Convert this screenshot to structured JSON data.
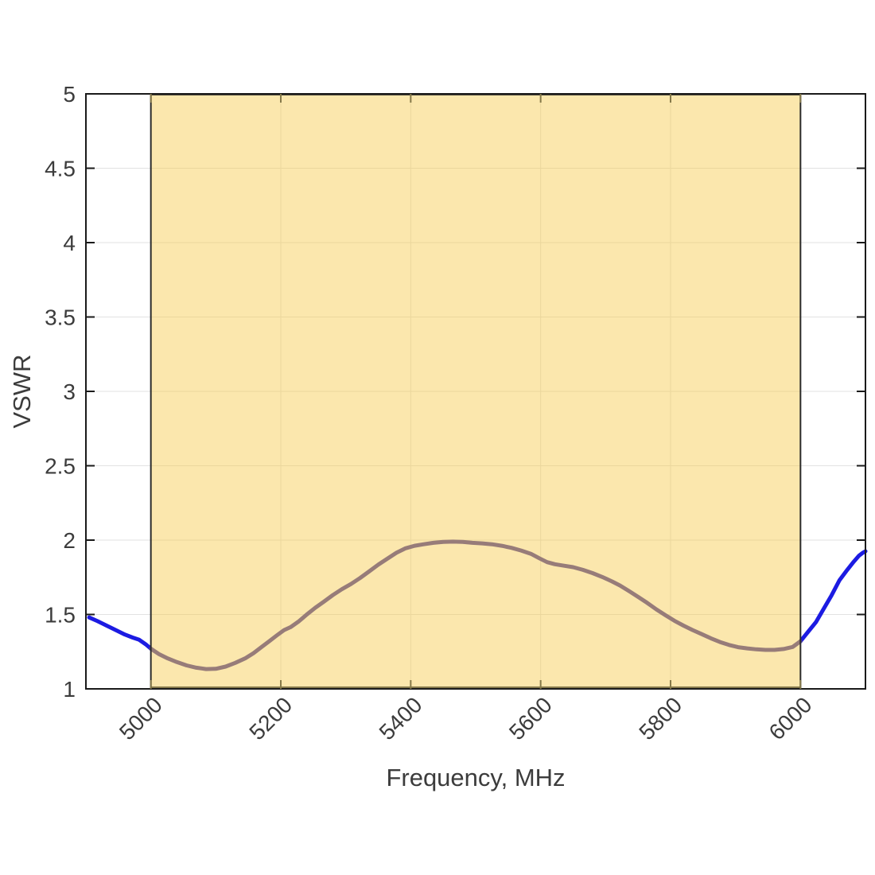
{
  "colors": {
    "background": "#FFFFFF",
    "grid": "#E2E2E2",
    "axis": "#1A1A1A",
    "tick_label": "#3C3C3C",
    "band_tick": "#85794A",
    "band_bottom_accent": "#867A4C",
    "band_top_accent": "#4A463A"
  },
  "chart_data": {
    "type": "line",
    "title": "",
    "xlabel": "Frequency, MHz",
    "ylabel": "VSWR",
    "xlim": [
      4900,
      6100
    ],
    "ylim": [
      1,
      5
    ],
    "grid": true,
    "legend": "none",
    "xticks": [
      5000,
      5200,
      5400,
      5600,
      5800,
      6000
    ],
    "xtick_labels": [
      "5000",
      "5200",
      "5400",
      "5600",
      "5800",
      "6000"
    ],
    "xtick_rotation": 45,
    "yticks": [
      1,
      1.5,
      2,
      2.5,
      3,
      3.5,
      4,
      4.5,
      5
    ],
    "ytick_labels": [
      "1",
      "1.5",
      "2",
      "2.5",
      "3",
      "3.5",
      "4",
      "4.5",
      "5"
    ],
    "band": {
      "x_start": 5000,
      "x_end": 6000,
      "fill": "#F6CA4A",
      "fill_opacity": 0.45,
      "edge_color": "#2B2B2B"
    },
    "series": [
      {
        "name": "VSWR",
        "color": "#1C1BE2",
        "color_in_band": "#4A3DA0",
        "line_width": 5,
        "points": [
          [
            4905,
            1.48
          ],
          [
            4918,
            1.455
          ],
          [
            4932,
            1.425
          ],
          [
            4946,
            1.395
          ],
          [
            4960,
            1.365
          ],
          [
            4972,
            1.345
          ],
          [
            4982,
            1.33
          ],
          [
            4992,
            1.3
          ],
          [
            5000,
            1.27
          ],
          [
            5012,
            1.235
          ],
          [
            5026,
            1.205
          ],
          [
            5040,
            1.18
          ],
          [
            5055,
            1.158
          ],
          [
            5070,
            1.142
          ],
          [
            5085,
            1.133
          ],
          [
            5100,
            1.135
          ],
          [
            5115,
            1.15
          ],
          [
            5130,
            1.175
          ],
          [
            5145,
            1.205
          ],
          [
            5158,
            1.24
          ],
          [
            5170,
            1.28
          ],
          [
            5182,
            1.32
          ],
          [
            5194,
            1.36
          ],
          [
            5205,
            1.395
          ],
          [
            5215,
            1.415
          ],
          [
            5228,
            1.455
          ],
          [
            5240,
            1.5
          ],
          [
            5253,
            1.545
          ],
          [
            5266,
            1.585
          ],
          [
            5280,
            1.63
          ],
          [
            5294,
            1.67
          ],
          [
            5308,
            1.705
          ],
          [
            5322,
            1.745
          ],
          [
            5336,
            1.79
          ],
          [
            5350,
            1.835
          ],
          [
            5364,
            1.875
          ],
          [
            5378,
            1.915
          ],
          [
            5392,
            1.945
          ],
          [
            5406,
            1.962
          ],
          [
            5420,
            1.972
          ],
          [
            5435,
            1.982
          ],
          [
            5450,
            1.988
          ],
          [
            5465,
            1.99
          ],
          [
            5480,
            1.988
          ],
          [
            5495,
            1.982
          ],
          [
            5510,
            1.978
          ],
          [
            5525,
            1.972
          ],
          [
            5540,
            1.962
          ],
          [
            5555,
            1.948
          ],
          [
            5570,
            1.93
          ],
          [
            5585,
            1.908
          ],
          [
            5598,
            1.878
          ],
          [
            5610,
            1.852
          ],
          [
            5622,
            1.838
          ],
          [
            5636,
            1.828
          ],
          [
            5650,
            1.818
          ],
          [
            5665,
            1.8
          ],
          [
            5680,
            1.778
          ],
          [
            5695,
            1.752
          ],
          [
            5710,
            1.722
          ],
          [
            5722,
            1.695
          ],
          [
            5736,
            1.658
          ],
          [
            5750,
            1.618
          ],
          [
            5764,
            1.578
          ],
          [
            5778,
            1.535
          ],
          [
            5792,
            1.495
          ],
          [
            5806,
            1.458
          ],
          [
            5820,
            1.425
          ],
          [
            5834,
            1.395
          ],
          [
            5848,
            1.368
          ],
          [
            5862,
            1.34
          ],
          [
            5876,
            1.315
          ],
          [
            5890,
            1.295
          ],
          [
            5904,
            1.28
          ],
          [
            5918,
            1.272
          ],
          [
            5932,
            1.266
          ],
          [
            5946,
            1.262
          ],
          [
            5960,
            1.262
          ],
          [
            5974,
            1.268
          ],
          [
            5988,
            1.282
          ],
          [
            6000,
            1.32
          ],
          [
            6012,
            1.385
          ],
          [
            6024,
            1.45
          ],
          [
            6036,
            1.54
          ],
          [
            6048,
            1.63
          ],
          [
            6060,
            1.73
          ],
          [
            6072,
            1.8
          ],
          [
            6082,
            1.855
          ],
          [
            6090,
            1.895
          ],
          [
            6096,
            1.915
          ],
          [
            6100,
            1.925
          ]
        ]
      }
    ]
  }
}
